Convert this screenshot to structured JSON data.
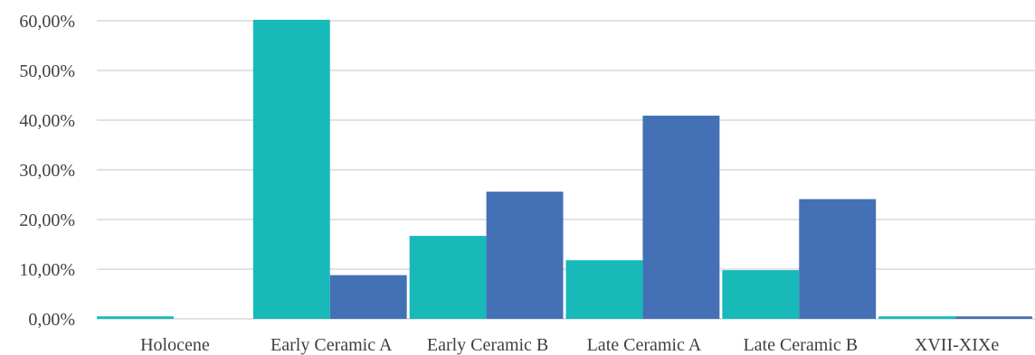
{
  "chart_data": {
    "type": "bar",
    "title": "",
    "xlabel": "",
    "ylabel": "",
    "ylim": [
      0,
      60
    ],
    "yticks": [
      "0,00%",
      "10,00%",
      "20,00%",
      "30,00%",
      "40,00%",
      "50,00%",
      "60,00%"
    ],
    "ytick_values": [
      0,
      10,
      20,
      30,
      40,
      50,
      60
    ],
    "grid": true,
    "categories": [
      "Holocene",
      "Early Ceramic A",
      "Early Ceramic B",
      "Late Ceramic A",
      "Late Ceramic B",
      "XVII-XIXe"
    ],
    "series": [
      {
        "values": [
          0.5,
          60.2,
          16.7,
          11.8,
          9.8,
          0.5
        ],
        "color": "#17b9b9"
      },
      {
        "values": [
          0.0,
          8.8,
          25.6,
          40.9,
          24.1,
          0.5
        ],
        "color": "#4470b6"
      }
    ]
  }
}
